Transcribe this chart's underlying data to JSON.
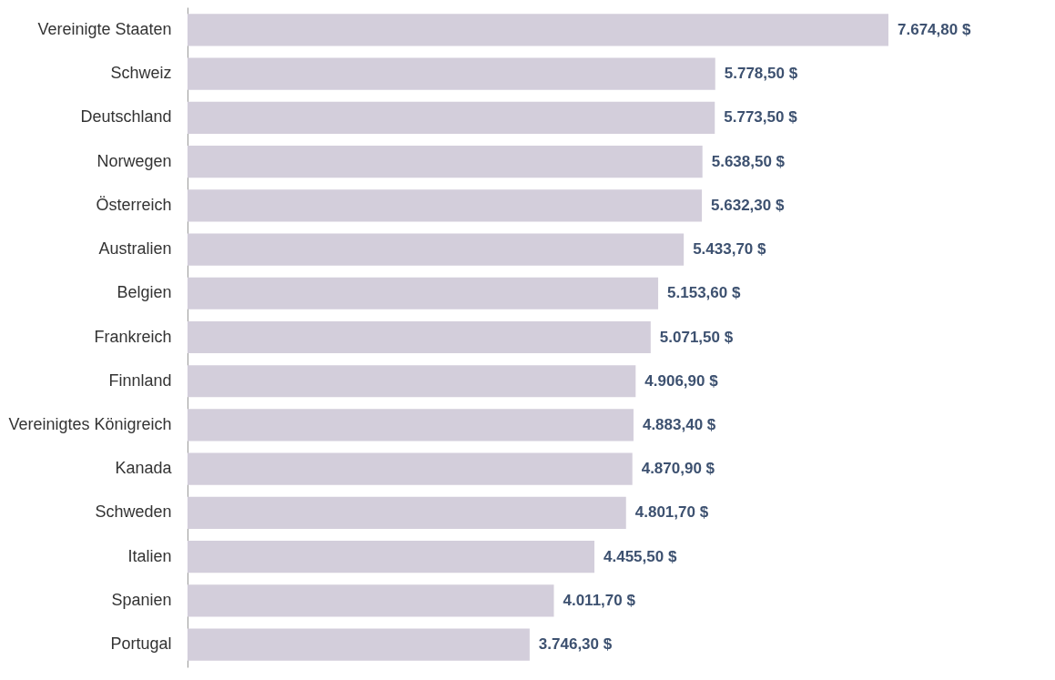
{
  "chart_data": {
    "type": "bar",
    "orientation": "horizontal",
    "categories": [
      "Vereinigte Staaten",
      "Schweiz",
      "Deutschland",
      "Norwegen",
      "Österreich",
      "Australien",
      "Belgien",
      "Frankreich",
      "Finnland",
      "Vereinigtes Königreich",
      "Kanada",
      "Schweden",
      "Italien",
      "Spanien",
      "Portugal"
    ],
    "values": [
      7674.8,
      5778.5,
      5773.5,
      5638.5,
      5632.3,
      5433.7,
      5153.6,
      5071.5,
      4906.9,
      4883.4,
      4870.9,
      4801.7,
      4455.5,
      4011.7,
      3746.3
    ],
    "value_labels": [
      "7.674,80 $",
      "5.778,50 $",
      "5.773,50 $",
      "5.638,50 $",
      "5.632,30 $",
      "5.433,70 $",
      "5.153,60 $",
      "5.071,50 $",
      "4.906,90 $",
      "4.883,40 $",
      "4.870,90 $",
      "4.801,70 $",
      "4.455,50 $",
      "4.011,70 $",
      "3.746,30 $"
    ],
    "color": "#d3cedb"
  }
}
